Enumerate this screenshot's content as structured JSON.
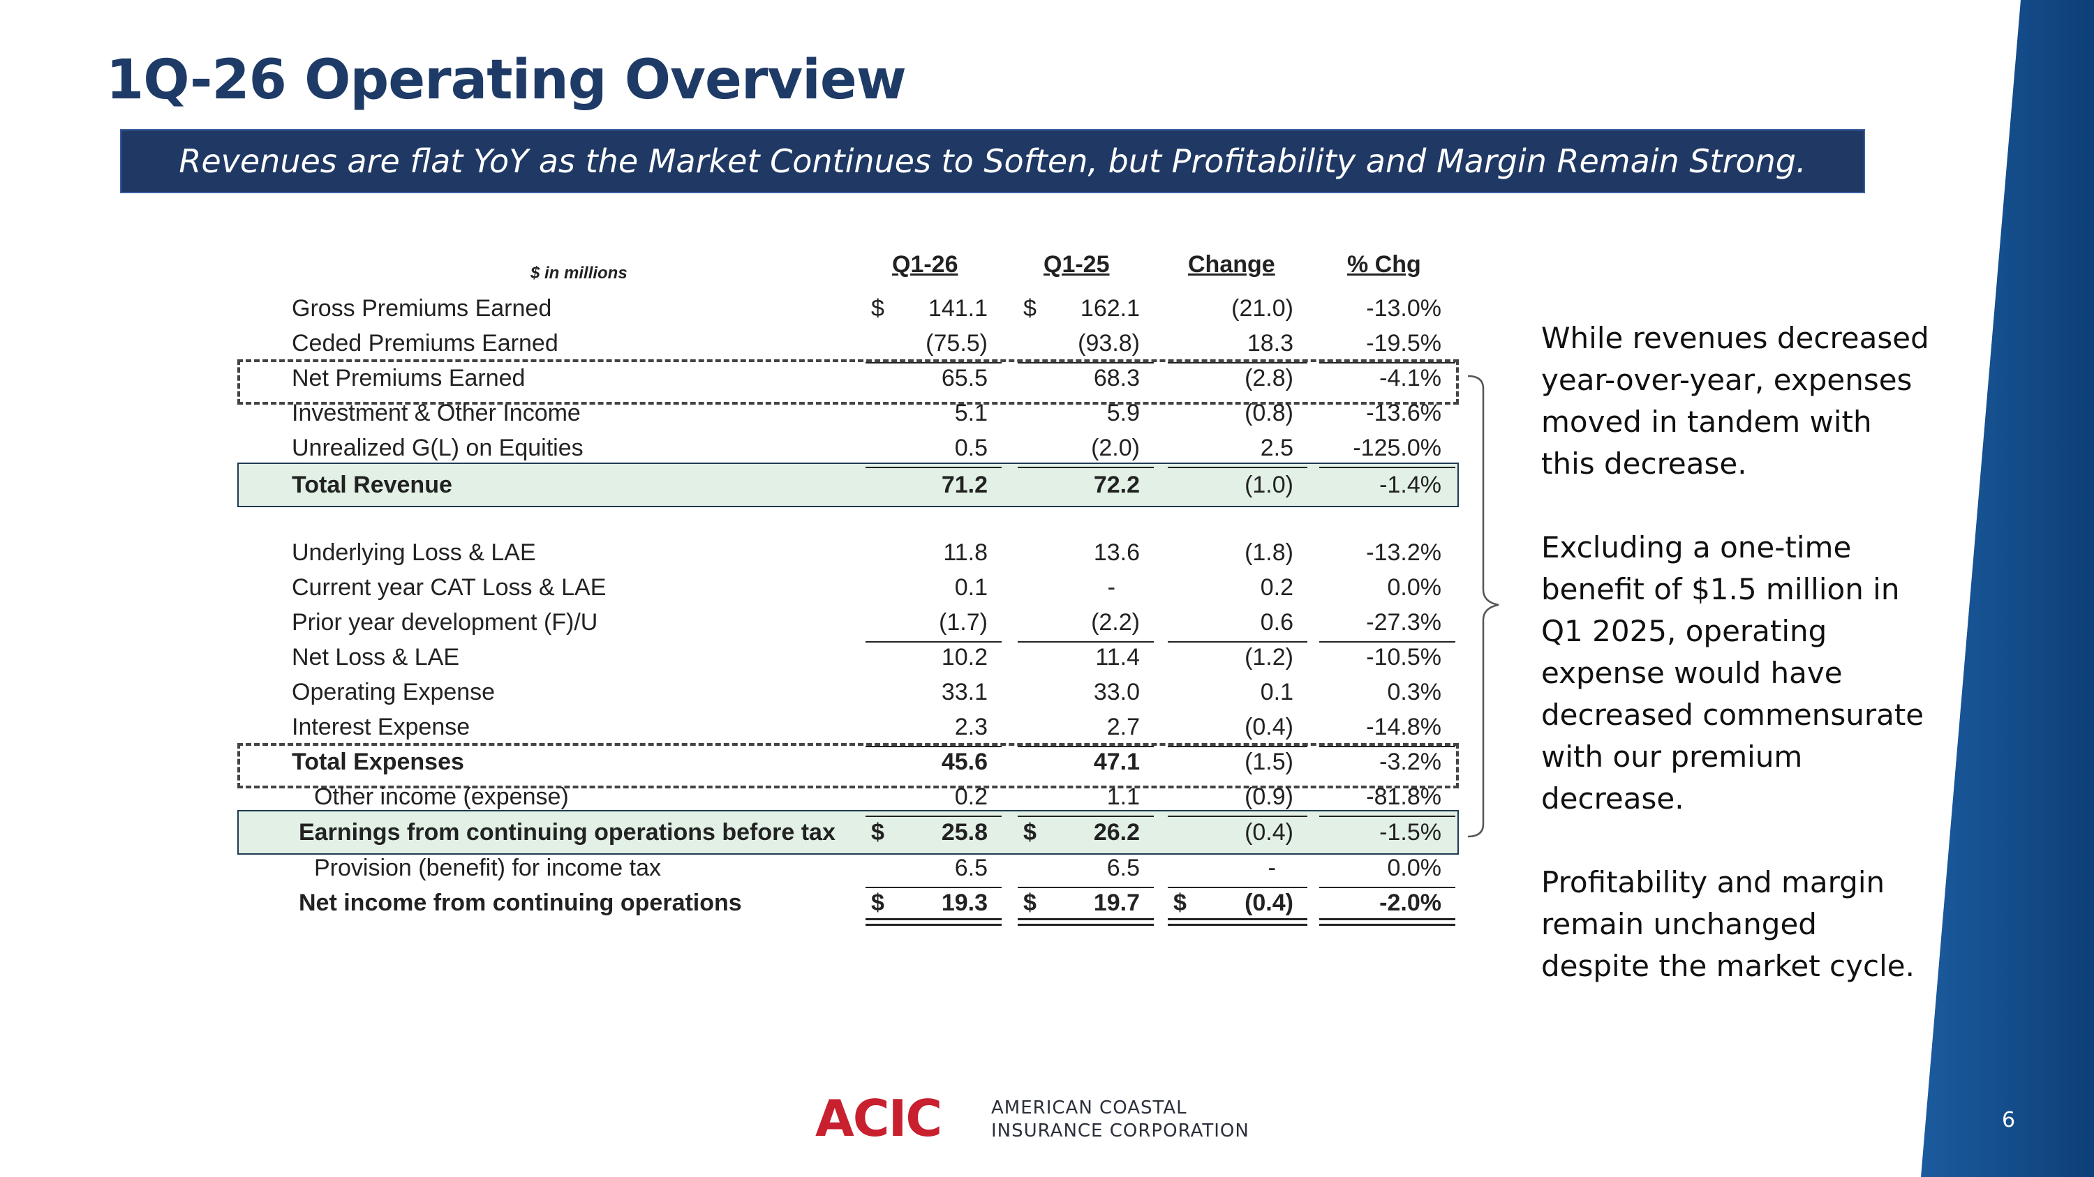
{
  "slide": {
    "title": "1Q-26 Operating Overview",
    "subtitle": "Revenues are flat YoY as the Market Continues to Soften, but Profitability and Margin Remain Strong.",
    "page_number": "6"
  },
  "table": {
    "unit_label": "$ in millions",
    "headers": [
      "Q1-26",
      "Q1-25",
      "Change",
      "% Chg"
    ],
    "rows": [
      {
        "label": "Gross Premiums Earned",
        "values": [
          "141.1",
          "162.1",
          "(21.0)",
          "-13.0%"
        ],
        "dollar": [
          "$",
          "$",
          "",
          ""
        ]
      },
      {
        "label": "Ceded Premiums Earned",
        "values": [
          "(75.5)",
          "(93.8)",
          "18.3",
          "-19.5%"
        ],
        "dollar": [
          "",
          "",
          "",
          ""
        ]
      },
      {
        "label": "Net Premiums Earned",
        "values": [
          "65.5",
          "68.3",
          "(2.8)",
          "-4.1%"
        ],
        "dollar": [
          "",
          "",
          "",
          ""
        ]
      },
      {
        "label": "Investment & Other Income",
        "values": [
          "5.1",
          "5.9",
          "(0.8)",
          "-13.6%"
        ],
        "dollar": [
          "",
          "",
          "",
          ""
        ]
      },
      {
        "label": "Unrealized G(L) on Equities",
        "values": [
          "0.5",
          "(2.0)",
          "2.5",
          "-125.0%"
        ],
        "dollar": [
          "",
          "",
          "",
          ""
        ]
      },
      {
        "label": "Total Revenue",
        "values": [
          "71.2",
          "72.2",
          "(1.0)",
          "-1.4%"
        ],
        "dollar": [
          "",
          "",
          "",
          ""
        ]
      },
      {
        "label": "Underlying Loss & LAE",
        "values": [
          "11.8",
          "13.6",
          "(1.8)",
          "-13.2%"
        ],
        "dollar": [
          "",
          "",
          "",
          ""
        ]
      },
      {
        "label": "Current year CAT Loss & LAE",
        "values": [
          "0.1",
          "-",
          "0.2",
          "0.0%"
        ],
        "dollar": [
          "",
          "",
          "",
          ""
        ]
      },
      {
        "label": "Prior year development (F)/U",
        "values": [
          "(1.7)",
          "(2.2)",
          "0.6",
          "-27.3%"
        ],
        "dollar": [
          "",
          "",
          "",
          ""
        ]
      },
      {
        "label": "Net Loss & LAE",
        "values": [
          "10.2",
          "11.4",
          "(1.2)",
          "-10.5%"
        ],
        "dollar": [
          "",
          "",
          "",
          ""
        ]
      },
      {
        "label": "Operating Expense",
        "values": [
          "33.1",
          "33.0",
          "0.1",
          "0.3%"
        ],
        "dollar": [
          "",
          "",
          "",
          ""
        ]
      },
      {
        "label": "Interest Expense",
        "values": [
          "2.3",
          "2.7",
          "(0.4)",
          "-14.8%"
        ],
        "dollar": [
          "",
          "",
          "",
          ""
        ]
      },
      {
        "label": "Total Expenses",
        "values": [
          "45.6",
          "47.1",
          "(1.5)",
          "-3.2%"
        ],
        "dollar": [
          "",
          "",
          "",
          ""
        ]
      },
      {
        "label": "Other income (expense)",
        "values": [
          "0.2",
          "1.1",
          "(0.9)",
          "-81.8%"
        ],
        "dollar": [
          "",
          "",
          "",
          ""
        ]
      },
      {
        "label": "Earnings from continuing operations before tax",
        "values": [
          "25.8",
          "26.2",
          "(0.4)",
          "-1.5%"
        ],
        "dollar": [
          "$",
          "$",
          "",
          ""
        ]
      },
      {
        "label": "Provision (benefit) for income tax",
        "values": [
          "6.5",
          "6.5",
          "-",
          "0.0%"
        ],
        "dollar": [
          "",
          "",
          "",
          ""
        ]
      },
      {
        "label": "Net income from continuing operations",
        "values": [
          "19.3",
          "19.7",
          "(0.4)",
          "-2.0%"
        ],
        "dollar": [
          "$",
          "$",
          "$",
          ""
        ]
      }
    ]
  },
  "notes": [
    "While revenues decreased year-over-year, expenses moved in tandem with this decrease.",
    "Excluding a one-time benefit of $1.5 million in Q1 2025, operating expense would have decreased commensurate with our premium decrease.",
    "Profitability and margin remain unchanged despite the market cycle."
  ],
  "footer": {
    "logo_text": "ACIC",
    "company_line1": "AMERICAN COASTAL",
    "company_line2": "INSURANCE CORPORATION"
  },
  "colors": {
    "title": "#1e3a66",
    "banner": "#1f3864",
    "highlight": "#e2f0e6",
    "side_band": "#114a8a",
    "logo_red": "#c8202f"
  }
}
